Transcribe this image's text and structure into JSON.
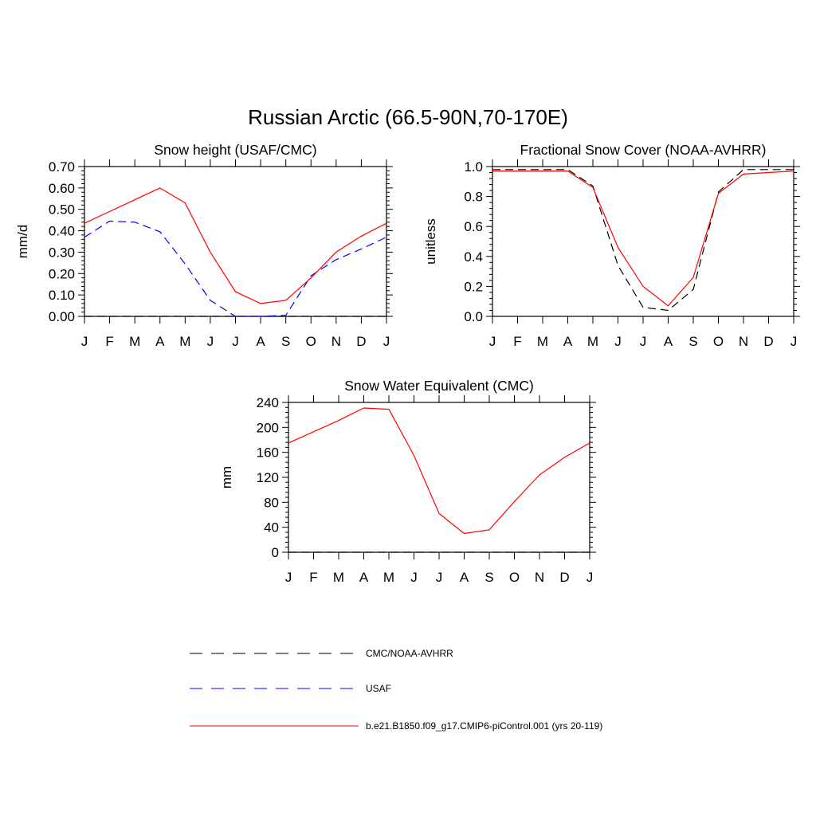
{
  "page": {
    "title": "Russian Arctic (66.5-90N,70-170E)"
  },
  "colors": {
    "obs_black": "#000000",
    "obs_blue": "#0000ff",
    "model_red": "#ff0000"
  },
  "legend": {
    "items": [
      {
        "label": "CMC/NOAA-AVHRR",
        "color": "#000000",
        "style": "dashed"
      },
      {
        "label": "USAF",
        "color": "#0000ff",
        "style": "dashed"
      },
      {
        "label": "b.e21.B1850.f09_g17.CMIP6-piControl.001 (yrs 20-119)",
        "color": "#ff0000",
        "style": "solid"
      }
    ]
  },
  "chart_data": [
    {
      "type": "line",
      "title": "Snow height (USAF/CMC)",
      "xlabel": "",
      "ylabel": "mm/d",
      "categories": [
        "J",
        "F",
        "M",
        "A",
        "M",
        "J",
        "J",
        "A",
        "S",
        "O",
        "N",
        "D",
        "J"
      ],
      "ylim": [
        0,
        0.7
      ],
      "yticks": [
        "0.00",
        "0.10",
        "0.20",
        "0.30",
        "0.40",
        "0.50",
        "0.60",
        "0.70"
      ],
      "grid": false,
      "series": [
        {
          "name": "CMC/NOAA-AVHRR",
          "color": "#000000",
          "style": "dashed",
          "values": [
            0,
            0,
            0,
            0,
            0,
            0,
            0,
            0,
            0,
            0,
            0,
            0,
            0
          ]
        },
        {
          "name": "USAF",
          "color": "#0000ff",
          "style": "dashed",
          "values": [
            0.37,
            0.445,
            0.44,
            0.395,
            0.245,
            0.075,
            0.0,
            0.0,
            0.005,
            0.19,
            0.265,
            0.315,
            0.37
          ]
        },
        {
          "name": "b.e21.B1850.f09_g17.CMIP6-piControl.001 (yrs 20-119)",
          "color": "#ff0000",
          "style": "solid",
          "values": [
            0.435,
            0.49,
            0.545,
            0.6,
            0.53,
            0.3,
            0.115,
            0.06,
            0.075,
            0.18,
            0.3,
            0.375,
            0.435
          ]
        }
      ]
    },
    {
      "type": "line",
      "title": "Fractional Snow Cover (NOAA-AVHRR)",
      "xlabel": "",
      "ylabel": "unitless",
      "categories": [
        "J",
        "F",
        "M",
        "A",
        "M",
        "J",
        "J",
        "A",
        "S",
        "O",
        "N",
        "D",
        "J"
      ],
      "ylim": [
        0,
        1.0
      ],
      "yticks": [
        "0.0",
        "0.2",
        "0.4",
        "0.6",
        "0.8",
        "1.0"
      ],
      "grid": false,
      "series": [
        {
          "name": "CMC/NOAA-AVHRR",
          "color": "#000000",
          "style": "dashed",
          "values": [
            0.98,
            0.98,
            0.98,
            0.98,
            0.87,
            0.34,
            0.06,
            0.04,
            0.18,
            0.83,
            0.98,
            0.98,
            0.98
          ]
        },
        {
          "name": "b.e21.B1850.f09_g17.CMIP6-piControl.001 (yrs 20-119)",
          "color": "#ff0000",
          "style": "solid",
          "values": [
            0.97,
            0.97,
            0.97,
            0.97,
            0.86,
            0.46,
            0.2,
            0.07,
            0.26,
            0.82,
            0.95,
            0.96,
            0.97
          ]
        }
      ]
    },
    {
      "type": "line",
      "title": "Snow Water Equivalent (CMC)",
      "xlabel": "",
      "ylabel": "mm",
      "categories": [
        "J",
        "F",
        "M",
        "A",
        "M",
        "J",
        "J",
        "A",
        "S",
        "O",
        "N",
        "D",
        "J"
      ],
      "ylim": [
        0,
        240
      ],
      "yticks": [
        "0",
        "40",
        "80",
        "120",
        "160",
        "200",
        "240"
      ],
      "grid": false,
      "series": [
        {
          "name": "CMC/NOAA-AVHRR",
          "color": "#000000",
          "style": "dashed",
          "values": [
            0,
            0,
            0,
            0,
            0,
            0,
            0,
            0,
            0,
            0,
            0,
            0,
            0
          ]
        },
        {
          "name": "b.e21.B1850.f09_g17.CMIP6-piControl.001 (yrs 20-119)",
          "color": "#ff0000",
          "style": "solid",
          "values": [
            175,
            193,
            211,
            231,
            229,
            155,
            62,
            30,
            36,
            81,
            124,
            152,
            175
          ]
        }
      ]
    }
  ]
}
